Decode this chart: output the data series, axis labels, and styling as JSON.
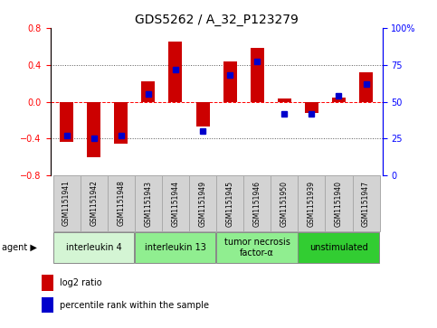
{
  "title": "GDS5262 / A_32_P123279",
  "samples": [
    "GSM1151941",
    "GSM1151942",
    "GSM1151948",
    "GSM1151943",
    "GSM1151944",
    "GSM1151949",
    "GSM1151945",
    "GSM1151946",
    "GSM1151950",
    "GSM1151939",
    "GSM1151940",
    "GSM1151947"
  ],
  "log2_ratio": [
    -0.44,
    -0.6,
    -0.46,
    0.22,
    0.65,
    -0.27,
    0.44,
    0.58,
    0.03,
    -0.12,
    0.04,
    0.32
  ],
  "percentile_rank": [
    27,
    25,
    27,
    55,
    72,
    30,
    68,
    77,
    42,
    42,
    54,
    62
  ],
  "agents": [
    {
      "label": "interleukin 4",
      "start": 0,
      "end": 3,
      "color": "#d4f5d4"
    },
    {
      "label": "interleukin 13",
      "start": 3,
      "end": 6,
      "color": "#90ee90"
    },
    {
      "label": "tumor necrosis\nfactor-α",
      "start": 6,
      "end": 9,
      "color": "#90ee90"
    },
    {
      "label": "unstimulated",
      "start": 9,
      "end": 12,
      "color": "#32cd32"
    }
  ],
  "ylim_left": [
    -0.8,
    0.8
  ],
  "ylim_right": [
    0,
    100
  ],
  "bar_color": "#cc0000",
  "dot_color": "#0000cc",
  "bg_color": "#ffffff",
  "plot_bg": "#ffffff",
  "sample_box_color": "#d3d3d3",
  "sample_box_border": "#aaaaaa",
  "legend_labels": [
    "log2 ratio",
    "percentile rank within the sample"
  ],
  "title_fontsize": 10,
  "tick_fontsize": 7,
  "sample_fontsize": 5.5,
  "agent_fontsize": 7,
  "legend_fontsize": 7
}
